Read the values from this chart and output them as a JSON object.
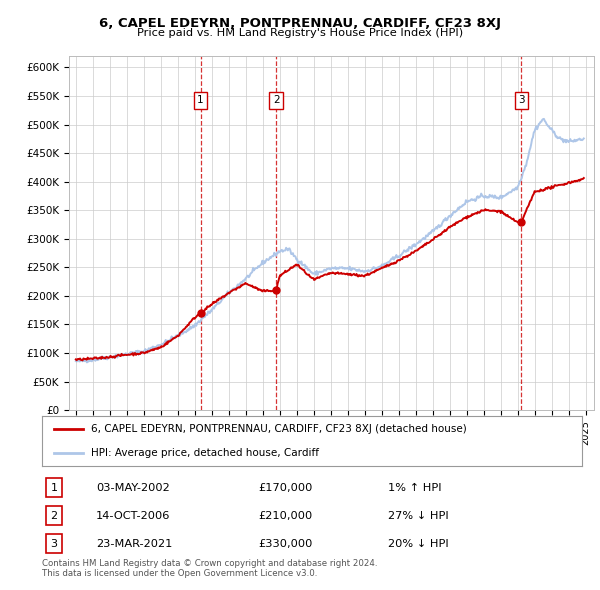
{
  "title": "6, CAPEL EDEYRN, PONTPRENNAU, CARDIFF, CF23 8XJ",
  "subtitle": "Price paid vs. HM Land Registry's House Price Index (HPI)",
  "ylim": [
    0,
    620000
  ],
  "yticks": [
    0,
    50000,
    100000,
    150000,
    200000,
    250000,
    300000,
    350000,
    400000,
    450000,
    500000,
    550000,
    600000
  ],
  "ytick_labels": [
    "£0",
    "£50K",
    "£100K",
    "£150K",
    "£200K",
    "£250K",
    "£300K",
    "£350K",
    "£400K",
    "£450K",
    "£500K",
    "£550K",
    "£600K"
  ],
  "hpi_color": "#aec6e8",
  "price_color": "#cc0000",
  "vline_color": "#cc0000",
  "bg_color": "#ffffff",
  "grid_color": "#cccccc",
  "sale_points": [
    {
      "date_num": 2002.34,
      "price": 170000,
      "label": "1"
    },
    {
      "date_num": 2006.79,
      "price": 210000,
      "label": "2"
    },
    {
      "date_num": 2021.23,
      "price": 330000,
      "label": "3"
    }
  ],
  "legend_entries": [
    {
      "label": "6, CAPEL EDEYRN, PONTPRENNAU, CARDIFF, CF23 8XJ (detached house)",
      "color": "#cc0000"
    },
    {
      "label": "HPI: Average price, detached house, Cardiff",
      "color": "#aec6e8"
    }
  ],
  "table_rows": [
    {
      "num": "1",
      "date": "03-MAY-2002",
      "price": "£170,000",
      "hpi": "1% ↑ HPI"
    },
    {
      "num": "2",
      "date": "14-OCT-2006",
      "price": "£210,000",
      "hpi": "27% ↓ HPI"
    },
    {
      "num": "3",
      "date": "23-MAR-2021",
      "price": "£330,000",
      "hpi": "20% ↓ HPI"
    }
  ],
  "footnote1": "Contains HM Land Registry data © Crown copyright and database right 2024.",
  "footnote2": "This data is licensed under the Open Government Licence v3.0.",
  "hpi_anchors_x": [
    1995.0,
    1996.0,
    1997.0,
    1998.0,
    1999.0,
    2000.0,
    2001.0,
    2002.0,
    2003.0,
    2004.0,
    2005.0,
    2006.0,
    2007.0,
    2007.5,
    2008.0,
    2009.0,
    2010.0,
    2011.0,
    2012.0,
    2013.0,
    2014.0,
    2015.0,
    2016.0,
    2017.0,
    2018.0,
    2019.0,
    2020.0,
    2021.0,
    2021.5,
    2022.0,
    2022.5,
    2023.0,
    2023.5,
    2024.0,
    2024.9
  ],
  "hpi_anchors_y": [
    85000,
    88000,
    93000,
    98000,
    103000,
    115000,
    130000,
    148000,
    175000,
    205000,
    230000,
    258000,
    278000,
    282000,
    265000,
    238000,
    248000,
    248000,
    243000,
    252000,
    270000,
    290000,
    312000,
    340000,
    365000,
    375000,
    372000,
    390000,
    430000,
    490000,
    510000,
    490000,
    475000,
    470000,
    475000
  ],
  "price_anchors_x": [
    1995.0,
    1996.0,
    1997.0,
    1998.0,
    1999.0,
    2000.0,
    2001.0,
    2002.0,
    2002.34,
    2003.0,
    2004.0,
    2005.0,
    2006.0,
    2006.79,
    2007.0,
    2008.0,
    2009.0,
    2010.0,
    2011.0,
    2012.0,
    2013.0,
    2014.0,
    2015.0,
    2016.0,
    2017.0,
    2018.0,
    2019.0,
    2020.0,
    2021.0,
    2021.23,
    2022.0,
    2023.0,
    2024.0,
    2024.9
  ],
  "price_anchors_y": [
    88000,
    90000,
    93000,
    97000,
    100000,
    110000,
    130000,
    162000,
    170000,
    185000,
    205000,
    222000,
    208000,
    210000,
    235000,
    255000,
    228000,
    240000,
    238000,
    235000,
    248000,
    262000,
    278000,
    298000,
    320000,
    338000,
    350000,
    348000,
    328000,
    330000,
    382000,
    390000,
    398000,
    405000
  ]
}
